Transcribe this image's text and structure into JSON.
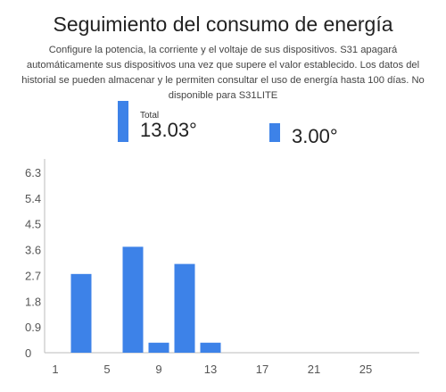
{
  "header": {
    "title": "Seguimiento del consumo de energía",
    "description": "Configure la potencia, la corriente y el voltaje de sus dispositivos. S31 apagará automáticamente sus dispositivos una vez que supere el valor establecido. Los datos del historial se pueden almacenar y le permiten consultar el uso de energía hasta 100 días. No disponible para S31LITE"
  },
  "legend": {
    "total_label": "Total",
    "total_value": "13.03°",
    "current_value": "3.00°"
  },
  "colors": {
    "bar": "#3d82e8",
    "axis": "#bbbbbb"
  },
  "chart_data": {
    "type": "bar",
    "title": "",
    "xlabel": "",
    "ylabel": "",
    "x": [
      3,
      7,
      9,
      11,
      13
    ],
    "values": [
      2.75,
      3.7,
      0.35,
      3.1,
      0.35
    ],
    "xlim": [
      1,
      29
    ],
    "ylim": [
      0,
      6.3
    ],
    "xticks": [
      "1",
      "5",
      "9",
      "13",
      "17",
      "21",
      "25"
    ],
    "yticks": [
      "0",
      "0.9",
      "1.8",
      "2.7",
      "3.6",
      "4.5",
      "5.4",
      "6.3"
    ],
    "grid": false
  }
}
